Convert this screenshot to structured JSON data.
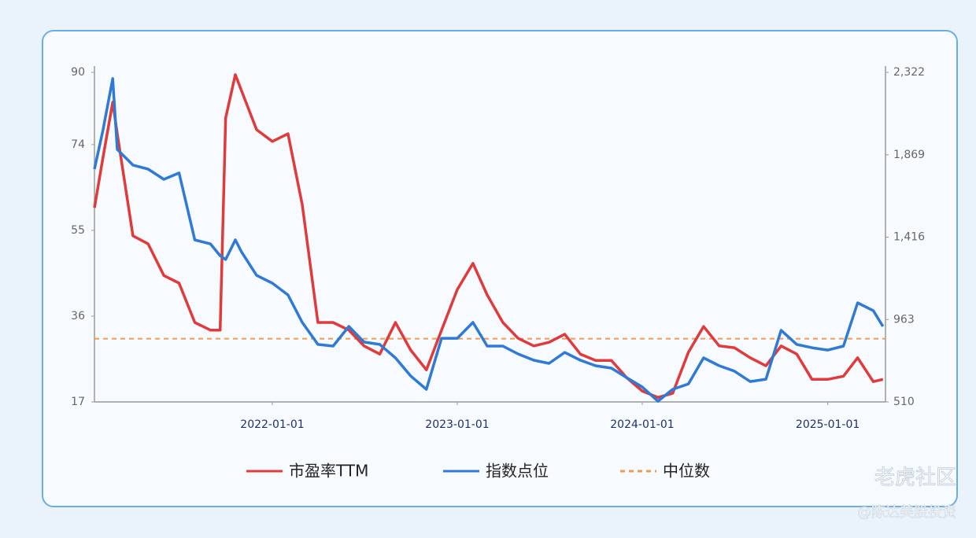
{
  "chart_data": {
    "type": "line",
    "x": [
      "2021-01-15",
      "2021-02-01",
      "2021-02-20",
      "2021-03-01",
      "2021-04-01",
      "2021-05-01",
      "2021-06-01",
      "2021-07-01",
      "2021-08-01",
      "2021-09-01",
      "2021-09-20",
      "2021-10-01",
      "2021-10-20",
      "2021-11-01",
      "2021-12-01",
      "2022-01-01",
      "2022-02-01",
      "2022-03-01",
      "2022-04-01",
      "2022-05-01",
      "2022-06-01",
      "2022-07-01",
      "2022-08-01",
      "2022-09-01",
      "2022-10-01",
      "2022-11-01",
      "2022-12-01",
      "2023-01-01",
      "2023-02-01",
      "2023-03-01",
      "2023-04-01",
      "2023-05-01",
      "2023-06-01",
      "2023-07-01",
      "2023-08-01",
      "2023-09-01",
      "2023-10-01",
      "2023-11-01",
      "2023-12-01",
      "2024-01-01",
      "2024-02-01",
      "2024-03-01",
      "2024-04-01",
      "2024-05-01",
      "2024-06-01",
      "2024-07-01",
      "2024-08-01",
      "2024-09-01",
      "2024-10-01",
      "2024-11-01",
      "2024-12-01",
      "2025-01-01",
      "2025-02-01",
      "2025-03-01",
      "2025-04-01",
      "2025-04-20"
    ],
    "series": [
      {
        "name": "市盈率TTM",
        "color": "#e03a3a",
        "axis": "y",
        "values": [
          60,
          71.2,
          83.4,
          76.4,
          53.8,
          52,
          45,
          43.3,
          34.6,
          32.9,
          32.9,
          79.9,
          89.5,
          86,
          77.3,
          74.7,
          76.4,
          60.7,
          34.6,
          34.6,
          32.9,
          29.4,
          27.6,
          34.6,
          28.5,
          24.1,
          32.9,
          41.9,
          47.7,
          40.7,
          34.6,
          31.1,
          29.4,
          30.2,
          32,
          27.6,
          26.2,
          26.2,
          22.4,
          19.4,
          18,
          18.9,
          28,
          33.7,
          29.4,
          29,
          26.8,
          25,
          29.4,
          27.6,
          22,
          22,
          22.7,
          26.8,
          21.5,
          22
        ]
      },
      {
        "name": "指数点位",
        "color": "#2f7ad6",
        "axis": "y2",
        "values": [
          1790,
          2006,
          2288,
          1898,
          1812,
          1790,
          1734,
          1769,
          1401,
          1379,
          1314,
          1293,
          1401,
          1336,
          1206,
          1163,
          1098,
          947,
          826,
          817,
          925,
          839,
          826,
          752,
          653,
          579,
          860,
          860,
          947,
          817,
          817,
          774,
          739,
          722,
          782,
          739,
          709,
          696,
          644,
          592,
          514,
          579,
          609,
          752,
          709,
          679,
          622,
          635,
          904,
          826,
          808,
          795,
          817,
          1055,
          1012,
          925
        ]
      }
    ],
    "median": {
      "name": "中位数",
      "value": 31,
      "color": "#f09a50"
    },
    "xlim": [
      "2021-01-15",
      "2025-04-25"
    ],
    "xticks": [
      "2022-01-01",
      "2023-01-01",
      "2024-01-01",
      "2025-01-01"
    ],
    "ylim": [
      17,
      90
    ],
    "yticks": [
      17,
      36,
      55,
      74,
      90
    ],
    "y2lim": [
      510,
      2322
    ],
    "y2ticks": [
      510,
      963,
      {
        "value": 1416,
        "label": "1,416"
      },
      {
        "value": 1869,
        "label": "1,869"
      },
      {
        "value": 2322,
        "label": "2,322"
      }
    ],
    "grid": false
  },
  "watermark": {
    "brand": "老虎社区",
    "author": "@陈达美股投资"
  }
}
